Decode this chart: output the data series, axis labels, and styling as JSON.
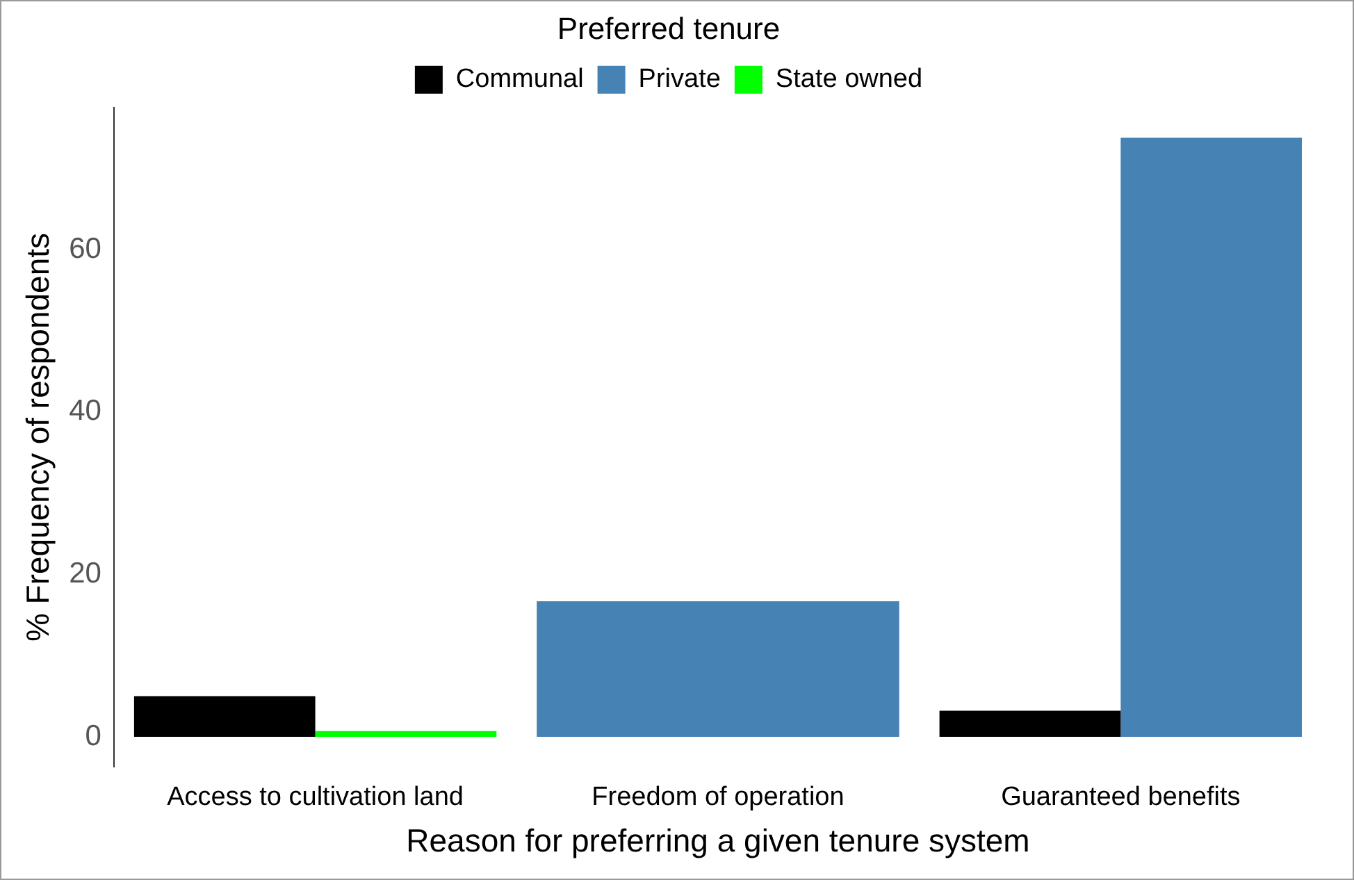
{
  "chart_data": {
    "type": "bar",
    "xlabel": "Reason for preferring a given tenure system",
    "ylabel": "% Frequency of respondents",
    "legend_title": "Preferred tenure",
    "legend": "top",
    "categories": [
      "Access to cultivation land",
      "Freedom of operation",
      "Guaranteed benefits"
    ],
    "series": [
      {
        "name": "Communal",
        "color": "#000000",
        "values": [
          5.0,
          null,
          3.2
        ]
      },
      {
        "name": "Private",
        "color": "#4682b4",
        "values": [
          null,
          16.7,
          73.8
        ]
      },
      {
        "name": "State owned",
        "color": "#00ff00",
        "values": [
          0.7,
          null,
          null
        ]
      }
    ],
    "ylim": [
      -3.7,
      77.5
    ],
    "yticks": [
      0,
      20,
      40,
      60
    ],
    "grid": false
  }
}
